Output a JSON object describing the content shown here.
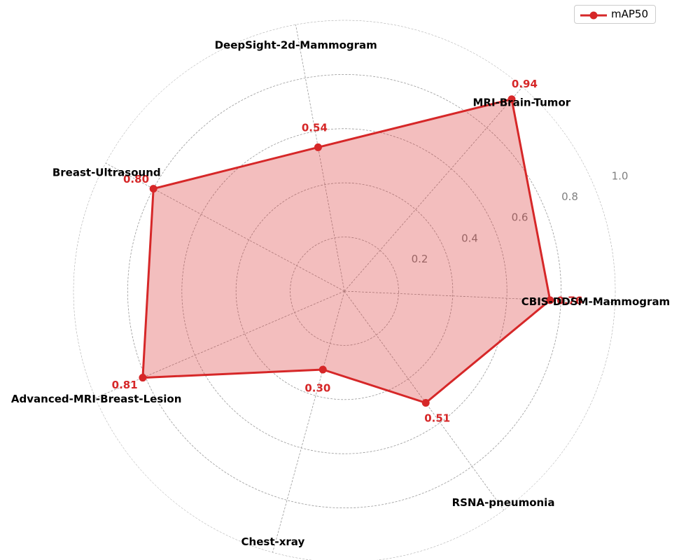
{
  "chart_data": {
    "type": "radar",
    "categories": [
      "CBIS-DDSM-Mammogram",
      "MRI-Brain-Tumor",
      "DeepSight-2d-Mammogram",
      "Breast-Ultrasound",
      "Advanced-MRI-Breast-Lesion",
      "Chest-xray",
      "RSNA-pneumonia"
    ],
    "series": [
      {
        "name": "mAP50",
        "values": [
          0.76,
          0.94,
          0.54,
          0.8,
          0.81,
          0.3,
          0.51
        ],
        "value_labels": [
          "0.76",
          "0.94",
          "0.54",
          "0.80",
          "0.81",
          "0.30",
          "0.51"
        ]
      }
    ],
    "rlim": [
      0,
      1.0
    ],
    "rticks": [
      0.2,
      0.4,
      0.6,
      0.8,
      1.0
    ],
    "rtick_labels": [
      "0.2",
      "0.4",
      "0.6",
      "0.8",
      "1.0"
    ],
    "grid": true,
    "legend": "top-right",
    "colors": {
      "series": "#d62728",
      "fill": "#d62728",
      "grid": "#999999",
      "tick": "#808080"
    }
  }
}
